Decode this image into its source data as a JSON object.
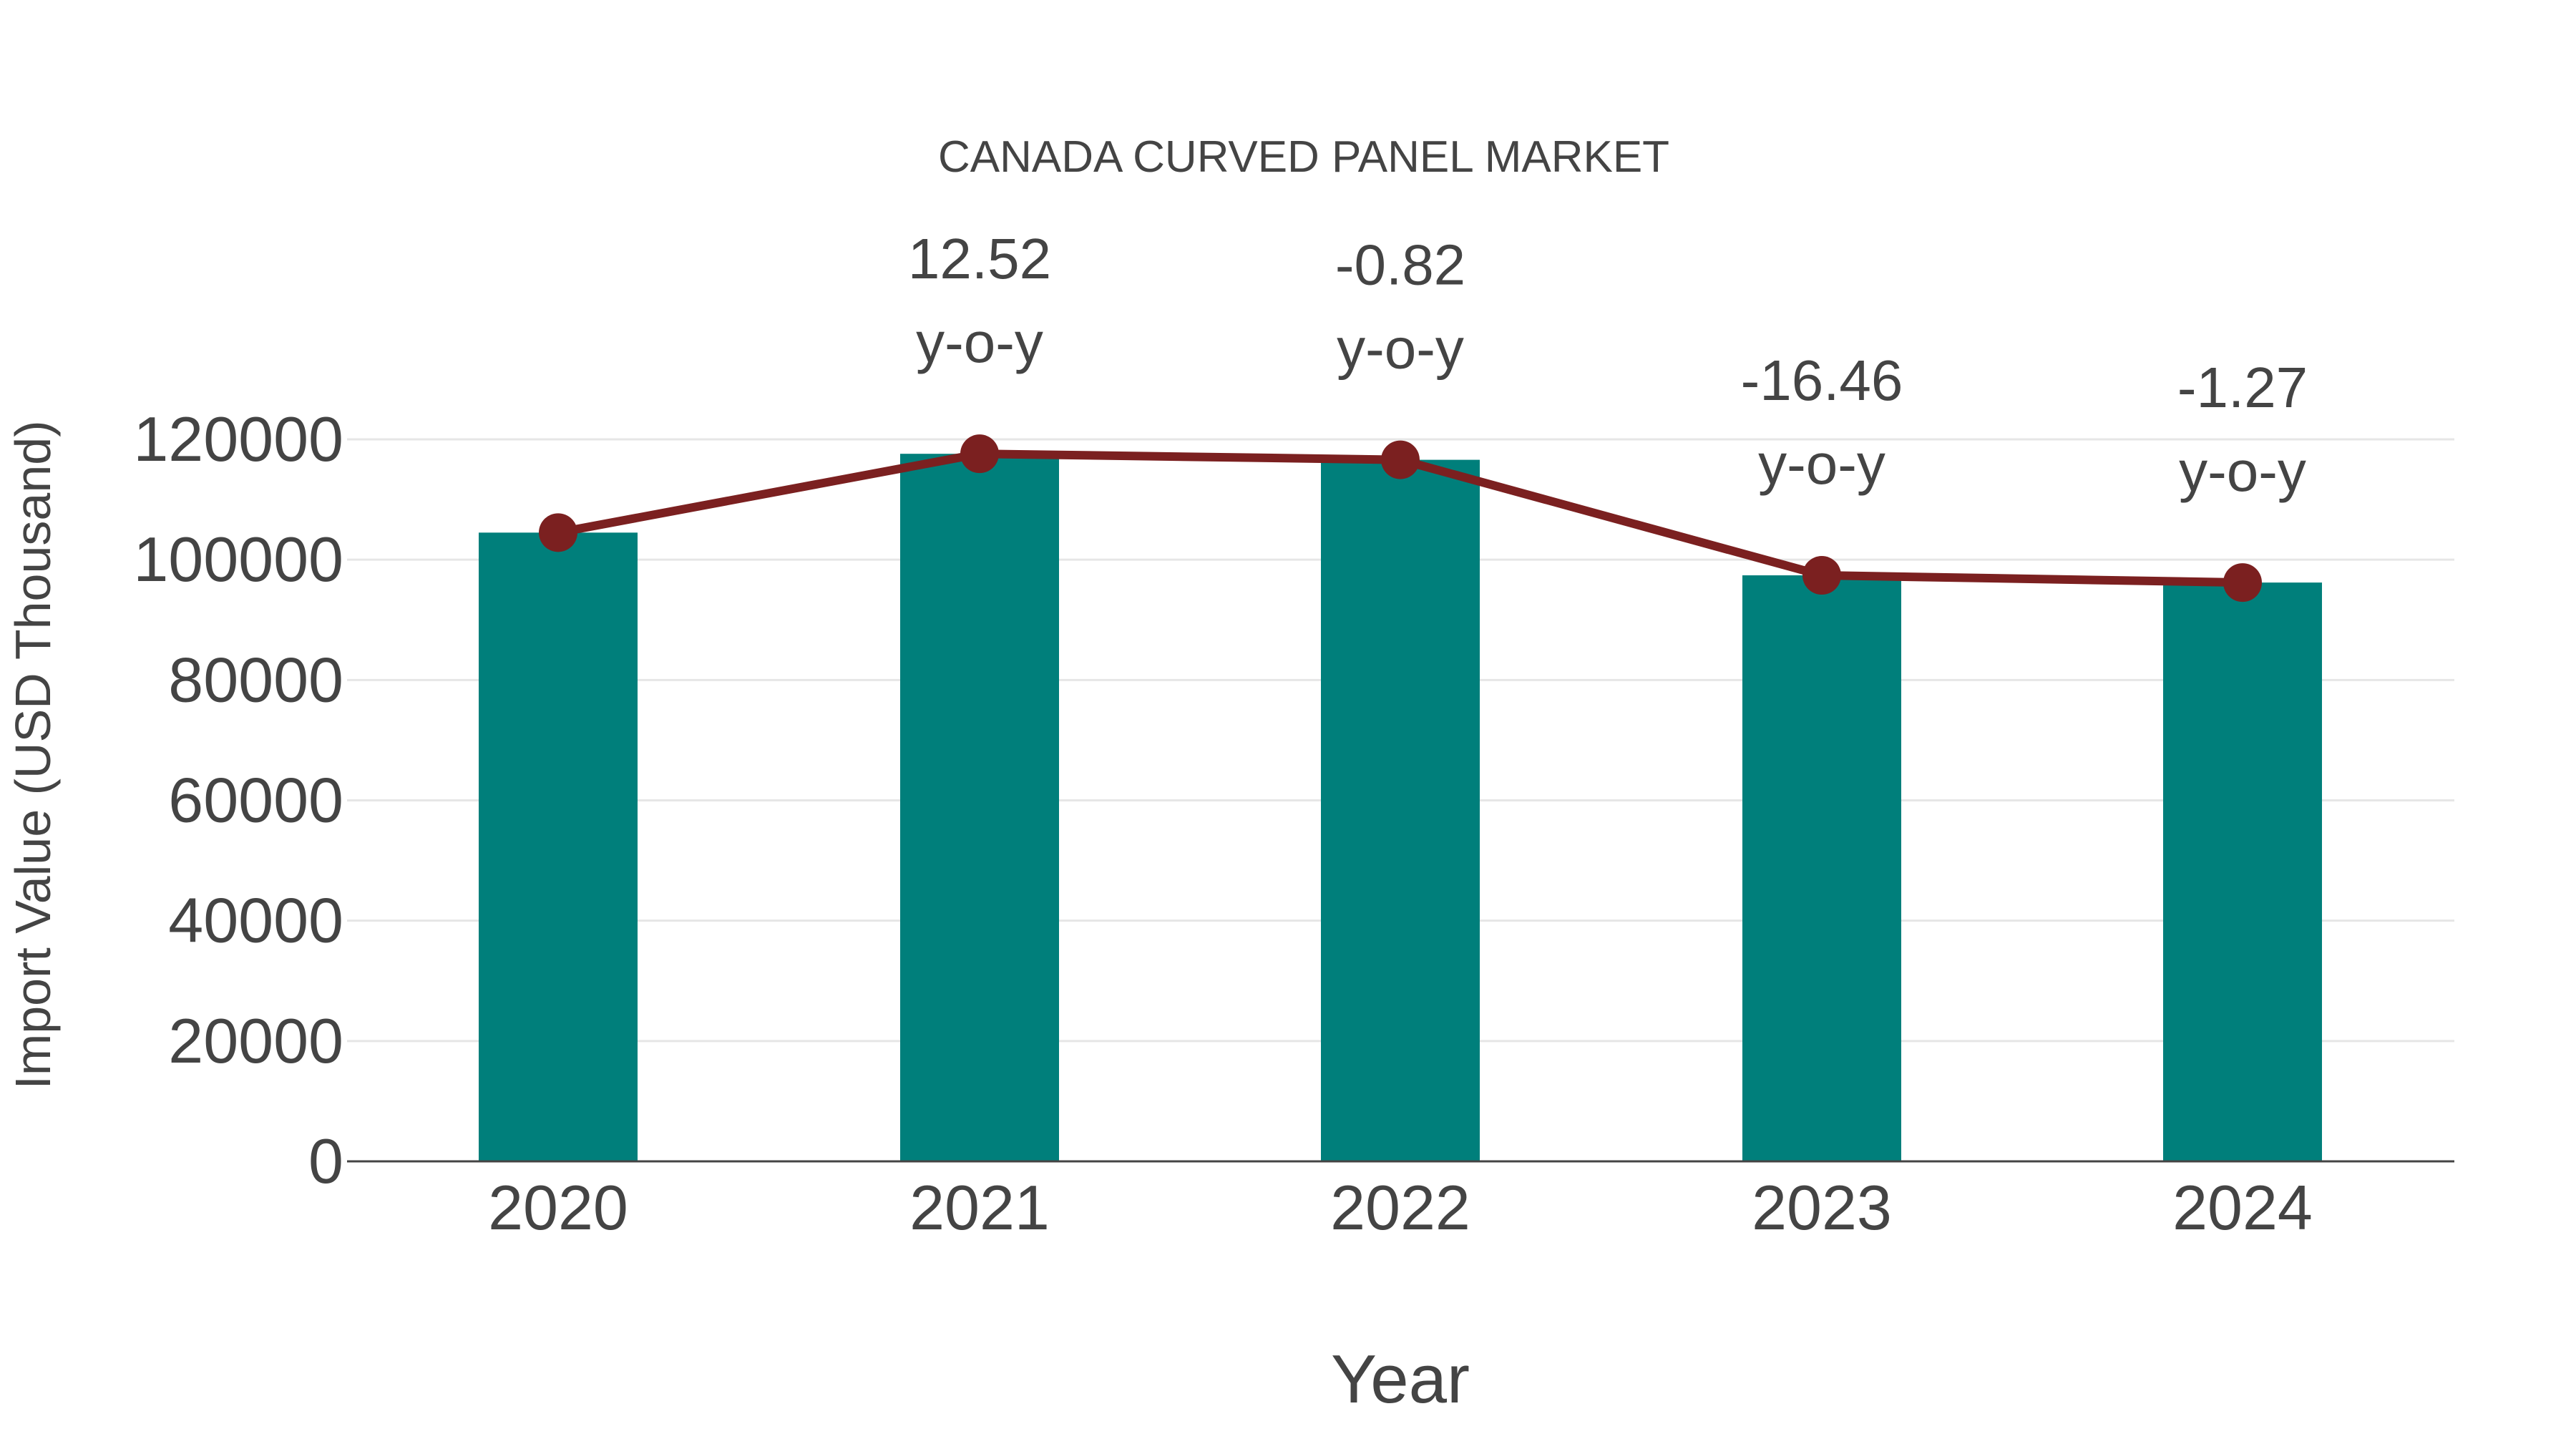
{
  "chart_data": {
    "type": "bar+line",
    "title": "CANADA CURVED PANEL MARKET",
    "xlabel": "Year",
    "ylabel": "Import Value (USD Thousand)",
    "categories": [
      "2020",
      "2021",
      "2022",
      "2023",
      "2024"
    ],
    "series": [
      {
        "name": "Import Value (bar)",
        "type": "bar",
        "color": "#007F7B",
        "values": [
          104500,
          117600,
          116600,
          97400,
          96200
        ]
      },
      {
        "name": "Import Value (line)",
        "type": "line",
        "color": "#7B2020",
        "values": [
          104500,
          117600,
          116600,
          97400,
          96200
        ]
      }
    ],
    "annotations": [
      {
        "category": "2021",
        "value": "12.52",
        "suffix": "y-o-y"
      },
      {
        "category": "2022",
        "value": "-0.82",
        "suffix": "y-o-y"
      },
      {
        "category": "2023",
        "value": "-16.46",
        "suffix": "y-o-y"
      },
      {
        "category": "2024",
        "value": "-1.27",
        "suffix": "y-o-y"
      }
    ],
    "yticks": [
      "0",
      "20000",
      "40000",
      "60000",
      "80000",
      "100000",
      "120000"
    ],
    "ylim": [
      0,
      120000
    ],
    "grid": true,
    "legend": "none"
  }
}
